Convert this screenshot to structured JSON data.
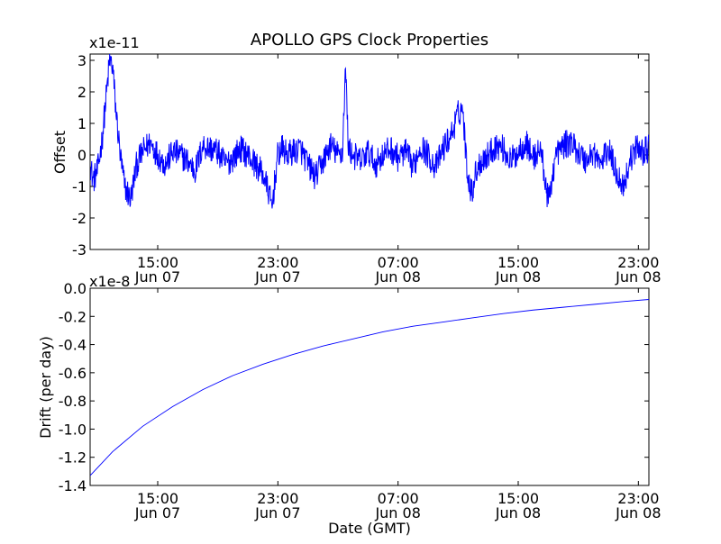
{
  "chart_data": [
    {
      "type": "line",
      "title": "APOLLO GPS Clock Properties",
      "ylabel": "Offset",
      "xlabel": "",
      "y_scale_label": "x1e-11",
      "ylim": [
        -3,
        3.2
      ],
      "yticks": [
        {
          "value": 3,
          "label": "3"
        },
        {
          "value": 2,
          "label": "2"
        },
        {
          "value": 1,
          "label": "1"
        },
        {
          "value": 0,
          "label": "0"
        },
        {
          "value": -1,
          "label": "-1"
        },
        {
          "value": -2,
          "label": "-2"
        },
        {
          "value": -3,
          "label": "-3"
        }
      ],
      "xlim_hours": [
        10.5,
        47.7
      ],
      "xticks": [
        {
          "hour": 15,
          "time": "15:00",
          "date": "Jun 07"
        },
        {
          "hour": 23,
          "time": "23:00",
          "date": "Jun 07"
        },
        {
          "hour": 31,
          "time": "07:00",
          "date": "Jun 08"
        },
        {
          "hour": 39,
          "time": "15:00",
          "date": "Jun 08"
        },
        {
          "hour": 47,
          "time": "23:00",
          "date": "Jun 08"
        }
      ],
      "series": [
        {
          "name": "Offset",
          "color": "#0000ff",
          "noise_amplitude": 0.45,
          "x": [
            10.5,
            10.7,
            11.0,
            11.3,
            11.6,
            11.8,
            12.0,
            12.2,
            12.5,
            12.8,
            13.2,
            13.6,
            14.0,
            14.5,
            15.0,
            15.5,
            16.0,
            16.5,
            17.0,
            17.5,
            18.0,
            18.5,
            19.0,
            19.5,
            20.0,
            20.5,
            21.0,
            21.5,
            22.0,
            22.4,
            22.6,
            22.8,
            23.0,
            23.3,
            23.6,
            24.0,
            24.5,
            25.0,
            25.5,
            26.0,
            26.5,
            27.0,
            27.3,
            27.5,
            27.7,
            28.0,
            28.5,
            29.0,
            29.5,
            30.0,
            30.5,
            31.0,
            31.5,
            32.0,
            32.5,
            33.0,
            33.5,
            34.0,
            34.5,
            34.8,
            35.0,
            35.3,
            35.6,
            35.9,
            36.2,
            36.5,
            37.0,
            37.5,
            38.0,
            38.5,
            39.0,
            39.5,
            40.0,
            40.5,
            41.0,
            41.5,
            42.0,
            42.5,
            43.0,
            43.5,
            44.0,
            44.5,
            45.0,
            45.5,
            46.0,
            46.5,
            47.0,
            47.3,
            47.7
          ],
          "y": [
            -0.3,
            -0.8,
            -0.5,
            0.5,
            2.0,
            3.0,
            2.8,
            1.5,
            0.0,
            -1.0,
            -1.4,
            -0.3,
            0.1,
            0.4,
            0.0,
            -0.3,
            0.1,
            0.0,
            -0.2,
            -0.5,
            0.3,
            0.2,
            0.1,
            -0.3,
            -0.1,
            0.2,
            0.0,
            -0.3,
            -0.6,
            -1.2,
            -1.7,
            -0.8,
            0.0,
            0.2,
            0.0,
            0.1,
            0.2,
            -0.3,
            -0.7,
            -0.2,
            0.3,
            0.0,
            0.1,
            2.8,
            0.2,
            0.0,
            -0.2,
            0.1,
            -0.3,
            0.0,
            0.2,
            -0.1,
            0.1,
            -0.4,
            0.3,
            0.0,
            -0.4,
            0.2,
            0.6,
            1.0,
            1.3,
            1.5,
            -0.5,
            -1.2,
            -0.5,
            -0.2,
            0.0,
            0.3,
            0.2,
            -0.2,
            0.1,
            0.4,
            -0.1,
            0.2,
            -1.5,
            0.0,
            0.3,
            0.4,
            0.1,
            -0.2,
            0.1,
            -0.3,
            0.2,
            -0.5,
            -1.0,
            -0.1,
            0.3,
            0.1,
            0.2
          ]
        }
      ]
    },
    {
      "type": "line",
      "title": "",
      "ylabel": "Drift (per day)",
      "xlabel": "Date (GMT)",
      "y_scale_label": "x1e-8",
      "ylim": [
        -1.4,
        0.0
      ],
      "yticks": [
        {
          "value": 0.0,
          "label": "0.0"
        },
        {
          "value": -0.2,
          "label": "-0.2"
        },
        {
          "value": -0.4,
          "label": "-0.4"
        },
        {
          "value": -0.6,
          "label": "-0.6"
        },
        {
          "value": -0.8,
          "label": "-0.8"
        },
        {
          "value": -1.0,
          "label": "-1.0"
        },
        {
          "value": -1.2,
          "label": "-1.2"
        },
        {
          "value": -1.4,
          "label": "-1.4"
        }
      ],
      "xlim_hours": [
        10.5,
        47.7
      ],
      "xticks": [
        {
          "hour": 15,
          "time": "15:00",
          "date": "Jun 07"
        },
        {
          "hour": 23,
          "time": "23:00",
          "date": "Jun 07"
        },
        {
          "hour": 31,
          "time": "07:00",
          "date": "Jun 08"
        },
        {
          "hour": 39,
          "time": "15:00",
          "date": "Jun 08"
        },
        {
          "hour": 47,
          "time": "23:00",
          "date": "Jun 08"
        }
      ],
      "series": [
        {
          "name": "Drift",
          "color": "#0000ff",
          "x": [
            10.5,
            12.0,
            14.0,
            16.0,
            18.0,
            20.0,
            22.0,
            24.0,
            26.0,
            28.0,
            30.0,
            32.0,
            34.0,
            36.0,
            38.0,
            40.0,
            42.0,
            44.0,
            46.0,
            47.7
          ],
          "y": [
            -1.33,
            -1.16,
            -0.98,
            -0.84,
            -0.72,
            -0.62,
            -0.54,
            -0.47,
            -0.41,
            -0.36,
            -0.31,
            -0.27,
            -0.24,
            -0.21,
            -0.18,
            -0.155,
            -0.135,
            -0.115,
            -0.095,
            -0.08
          ]
        }
      ]
    }
  ]
}
